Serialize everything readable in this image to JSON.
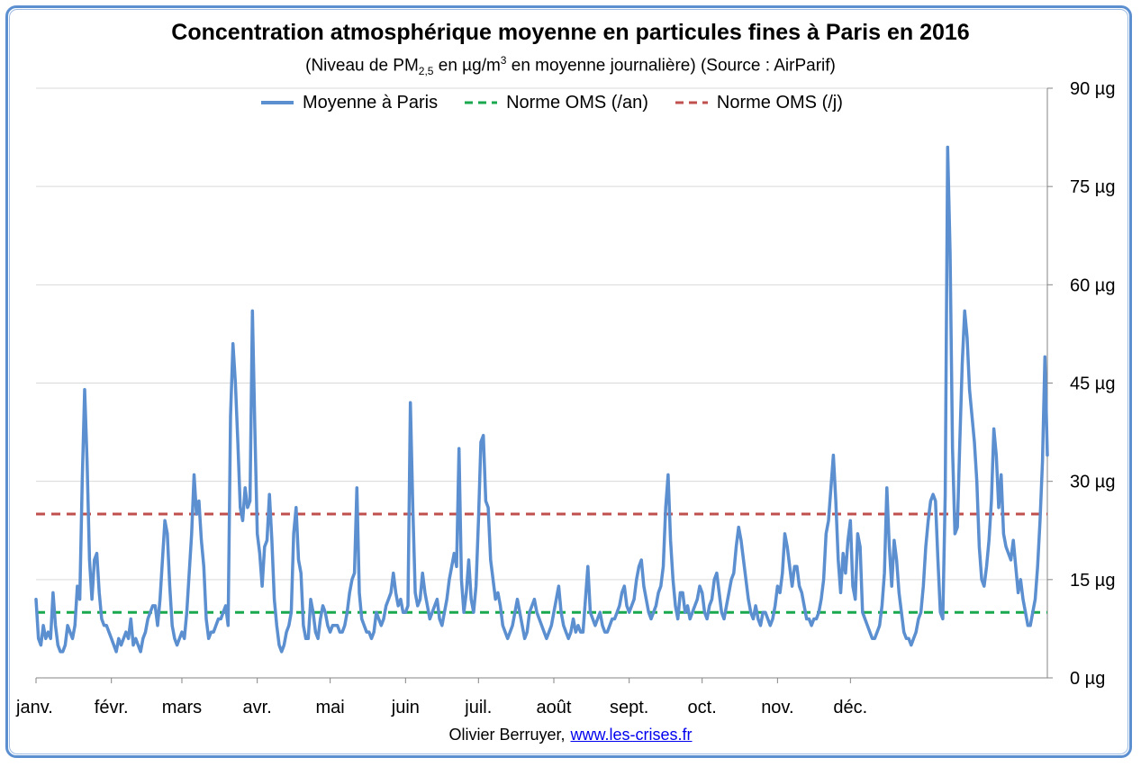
{
  "chart_data": {
    "type": "line",
    "title": "Concentration atmosphérique moyenne en particules fines à Paris  en 2016",
    "subtitle_parts": {
      "prefix": "(Niveau de PM",
      "pm_sub": "2,5",
      "middle": " en µg/m",
      "unit_sup": "3",
      "suffix": " en moyenne journalière) (Source : AirParif)"
    },
    "ylim": [
      0,
      90
    ],
    "y_ticks": [
      {
        "value": 0,
        "label": "0 µg"
      },
      {
        "value": 15,
        "label": "15 µg"
      },
      {
        "value": 30,
        "label": "30 µg"
      },
      {
        "value": 45,
        "label": "45 µg"
      },
      {
        "value": 60,
        "label": "60 µg"
      },
      {
        "value": 75,
        "label": "75 µg"
      },
      {
        "value": 90,
        "label": "90 µg"
      }
    ],
    "x_ticks": [
      {
        "day": 0,
        "label": "janv."
      },
      {
        "day": 31,
        "label": "févr."
      },
      {
        "day": 60,
        "label": "mars"
      },
      {
        "day": 91,
        "label": "avr."
      },
      {
        "day": 121,
        "label": "mai"
      },
      {
        "day": 152,
        "label": "juin"
      },
      {
        "day": 182,
        "label": "juil."
      },
      {
        "day": 213,
        "label": "août"
      },
      {
        "day": 244,
        "label": "sept."
      },
      {
        "day": 274,
        "label": "oct."
      },
      {
        "day": 305,
        "label": "nov."
      },
      {
        "day": 335,
        "label": "déc."
      }
    ],
    "grid": "horizontal",
    "legend_placement": "top",
    "series": [
      {
        "name": "Moyenne à Paris",
        "color": "#5b8fd0",
        "style": "solid",
        "values": [
          12,
          6,
          5,
          8,
          6,
          7,
          6,
          13,
          8,
          5,
          4,
          4,
          5,
          8,
          7,
          6,
          8,
          14,
          12,
          30,
          44,
          33,
          18,
          12,
          18,
          19,
          13,
          9,
          8,
          8,
          7,
          6,
          5,
          4,
          6,
          5,
          6,
          7,
          6,
          9,
          5,
          6,
          5,
          4,
          6,
          7,
          9,
          10,
          11,
          11,
          8,
          12,
          18,
          24,
          22,
          14,
          8,
          6,
          5,
          6,
          7,
          6,
          10,
          16,
          22,
          31,
          25,
          27,
          21,
          17,
          9,
          6,
          7,
          7,
          8,
          9,
          9,
          10,
          11,
          8,
          40,
          51,
          45,
          36,
          26,
          24,
          29,
          26,
          27,
          56,
          38,
          22,
          19,
          14,
          20,
          21,
          28,
          21,
          12,
          8,
          5,
          4,
          5,
          7,
          8,
          10,
          22,
          26,
          18,
          16,
          8,
          6,
          6,
          12,
          10,
          7,
          6,
          9,
          11,
          10,
          8,
          7,
          8,
          8,
          8,
          7,
          7,
          8,
          10,
          13,
          15,
          16,
          29,
          13,
          9,
          8,
          7,
          7,
          6,
          7,
          10,
          9,
          8,
          9,
          11,
          12,
          13,
          16,
          13,
          11,
          12,
          10,
          10,
          11,
          42,
          26,
          13,
          11,
          12,
          16,
          13,
          11,
          9,
          10,
          11,
          12,
          9,
          8,
          10,
          12,
          15,
          17,
          19,
          17,
          35,
          15,
          10,
          13,
          18,
          12,
          10,
          14,
          24,
          36,
          37,
          27,
          26,
          18,
          15,
          12,
          13,
          11,
          8,
          7,
          6,
          7,
          8,
          10,
          12,
          10,
          8,
          6,
          7,
          10,
          11,
          12,
          10,
          9,
          8,
          7,
          6,
          7,
          8,
          10,
          12,
          14,
          10,
          8,
          7,
          6,
          7,
          9,
          7,
          8,
          7,
          7,
          12,
          17,
          10,
          9,
          8,
          9,
          10,
          8,
          7,
          7,
          8,
          9,
          9,
          10,
          11,
          13,
          14,
          11,
          10,
          11,
          12,
          15,
          17,
          18,
          14,
          12,
          10,
          9,
          10,
          11,
          13,
          14,
          17,
          26,
          31,
          21,
          15,
          11,
          9,
          13,
          13,
          10,
          11,
          9,
          10,
          11,
          12,
          14,
          13,
          10,
          9,
          11,
          12,
          15,
          16,
          13,
          10,
          9,
          11,
          13,
          15,
          16,
          20,
          23,
          21,
          18,
          15,
          12,
          10,
          9,
          11,
          9,
          8,
          10,
          10,
          9,
          8,
          9,
          11,
          14,
          13,
          16,
          22,
          20,
          17,
          14,
          17,
          17,
          14,
          13,
          11,
          9,
          9,
          8,
          9,
          9,
          10,
          12,
          15,
          22,
          24,
          29,
          34,
          27,
          18,
          13,
          19,
          16,
          21,
          24,
          14,
          12,
          22,
          20,
          10,
          9,
          8,
          7,
          6,
          6,
          7,
          8,
          11,
          16,
          29,
          20,
          14,
          21,
          18,
          13,
          10,
          7,
          6,
          6,
          5,
          6,
          7,
          9,
          10,
          14,
          20,
          24,
          27,
          28,
          27,
          18,
          10,
          9,
          28,
          81,
          65,
          35,
          22,
          23,
          36,
          48,
          56,
          52,
          44,
          40,
          36,
          30,
          20,
          15,
          14,
          17,
          21,
          27,
          38,
          34,
          26,
          31,
          22,
          20,
          19,
          18,
          21,
          17,
          13,
          15,
          12,
          10,
          8,
          8,
          10,
          12,
          17,
          24,
          33,
          49,
          34
        ]
      },
      {
        "name": "Norme OMS (/an)",
        "color": "#1aa84f",
        "style": "dashed",
        "constant": 10
      },
      {
        "name": "Norme OMS (/j)",
        "color": "#c0504d",
        "style": "dashed",
        "constant": 25
      }
    ]
  },
  "credit": {
    "author": "Olivier Berruyer,",
    "link": "www.les-crises.fr"
  }
}
